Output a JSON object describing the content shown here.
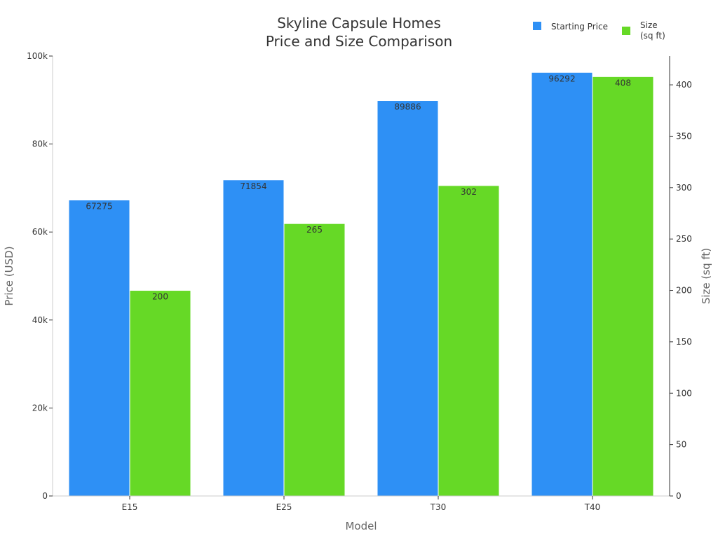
{
  "chart_data": {
    "type": "bar",
    "title_lines": [
      "Skyline Capsule Homes",
      "Price and Size Comparison"
    ],
    "xlabel": "Model",
    "ylabel_left": "Price (USD)",
    "ylabel_right": "Size (sq ft)",
    "categories": [
      "E15",
      "E25",
      "T30",
      "T40"
    ],
    "series": [
      {
        "name": "Starting Price",
        "axis": "left",
        "color": "#2e90f5",
        "values": [
          67275,
          71854,
          89886,
          96292
        ]
      },
      {
        "name": "Size\n(sq ft)",
        "axis": "right",
        "color": "#66d926",
        "values": [
          200,
          265,
          302,
          408
        ]
      }
    ],
    "y_left": {
      "min": 0,
      "max": 100000,
      "ticks": [
        0,
        20000,
        40000,
        60000,
        80000,
        100000
      ],
      "tick_labels": [
        "0",
        "20k",
        "40k",
        "60k",
        "80k",
        "100k"
      ]
    },
    "y_right": {
      "min": 0,
      "max": 428,
      "ticks": [
        0,
        50,
        100,
        150,
        200,
        250,
        300,
        350,
        400
      ],
      "tick_labels": [
        "0",
        "50",
        "100",
        "150",
        "200",
        "250",
        "300",
        "350",
        "400"
      ]
    },
    "grid": false,
    "legend_position": "top-right"
  }
}
